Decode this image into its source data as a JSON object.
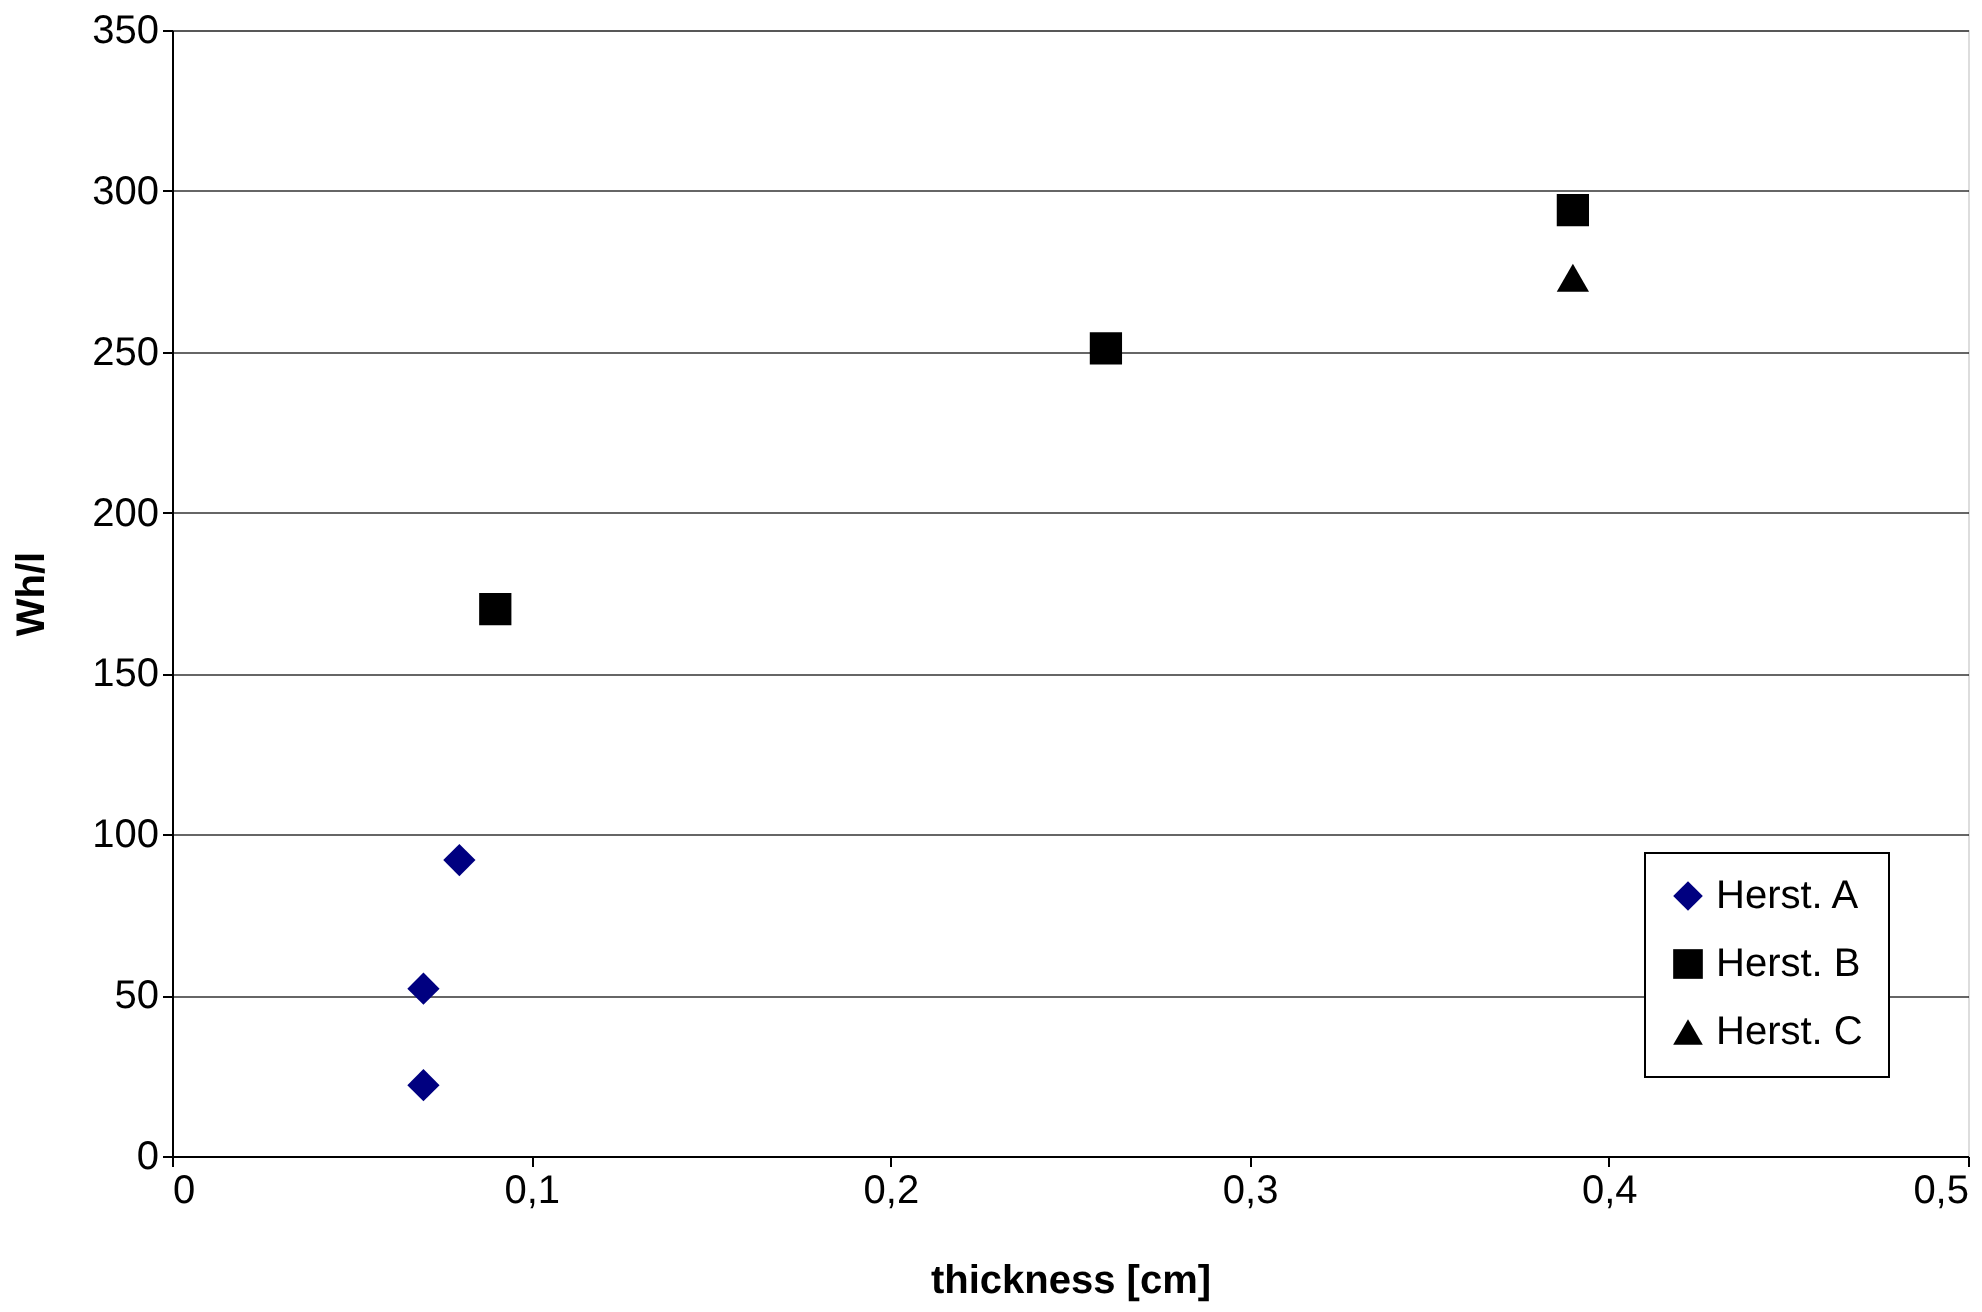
{
  "chart_data": {
    "type": "scatter",
    "xlabel": "thickness [cm]",
    "ylabel": "Wh/l",
    "xlim": [
      0,
      0.5
    ],
    "xticks": [
      0,
      {
        "value": 0.1,
        "label": "0,1"
      },
      {
        "value": 0.2,
        "label": "0,2"
      },
      {
        "value": 0.3,
        "label": "0,3"
      },
      {
        "value": 0.4,
        "label": "0,4"
      },
      {
        "value": 0.5,
        "label": "0,5"
      }
    ],
    "ylim": [
      0,
      350
    ],
    "yticks": [
      0,
      50,
      100,
      150,
      200,
      250,
      300,
      350
    ],
    "grid": "y",
    "legend": "bottom right",
    "series": [
      {
        "name": "Herst. A",
        "color": "#000080",
        "marker": "diamond",
        "x": [
          0.07,
          0.07,
          0.08
        ],
        "values": [
          22,
          52,
          92
        ]
      },
      {
        "name": "Herst. B",
        "color": "#000000",
        "marker": "square",
        "x": [
          0.09,
          0.26,
          0.39
        ],
        "values": [
          170,
          251,
          294
        ]
      },
      {
        "name": "Herst. C",
        "color": "#000000",
        "marker": "triangle",
        "x": [
          0.39
        ],
        "values": [
          273
        ]
      }
    ]
  }
}
